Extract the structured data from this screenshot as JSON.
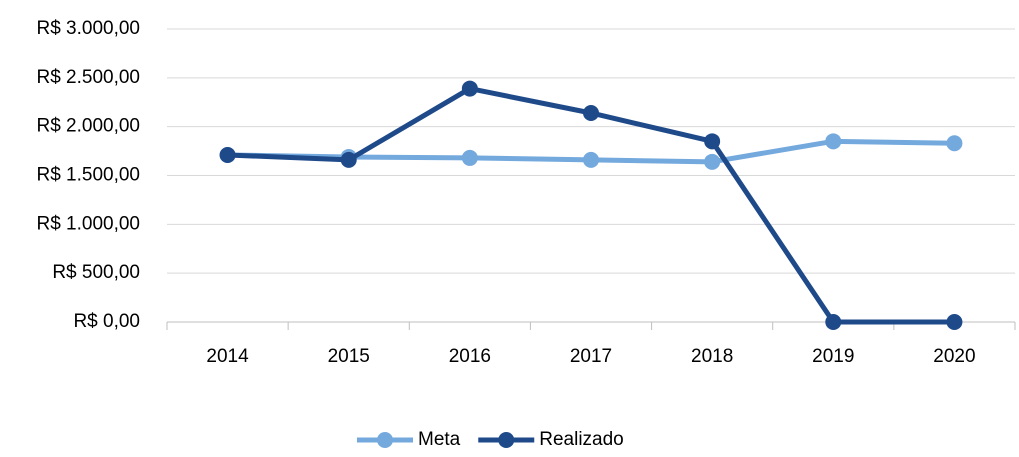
{
  "chart_data": {
    "type": "line",
    "categories": [
      "2014",
      "2015",
      "2016",
      "2017",
      "2018",
      "2019",
      "2020"
    ],
    "series": [
      {
        "name": "Meta",
        "color": "#74a9de",
        "values": [
          1710,
          1690,
          1680,
          1660,
          1640,
          1850,
          1830
        ]
      },
      {
        "name": "Realizado",
        "color": "#1f4a8a",
        "values": [
          1710,
          1660,
          2390,
          2140,
          1850,
          0,
          0
        ]
      }
    ],
    "ylim": [
      0,
      3000
    ],
    "yticks": [
      {
        "value": 0,
        "label": "R$ 0,00"
      },
      {
        "value": 500,
        "label": "R$ 500,00"
      },
      {
        "value": 1000,
        "label": "R$ 1.000,00"
      },
      {
        "value": 1500,
        "label": "R$ 1.500,00"
      },
      {
        "value": 2000,
        "label": "R$ 2.000,00"
      },
      {
        "value": 2500,
        "label": "R$ 2.500,00"
      },
      {
        "value": 3000,
        "label": "R$ 3.000,00"
      }
    ],
    "grid": true,
    "legend": "bottom"
  }
}
